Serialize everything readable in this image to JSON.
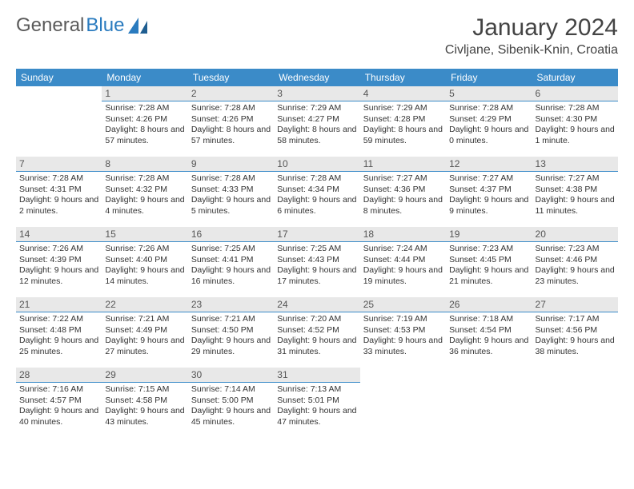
{
  "brand": {
    "part1": "General",
    "part2": "Blue"
  },
  "title": "January 2024",
  "location": "Civljane, Sibenik-Knin, Croatia",
  "colors": {
    "header_bg": "#3b8bc8",
    "header_text": "#ffffff",
    "daynum_bg": "#e8e8e8",
    "rule": "#3b8bc8",
    "logo_gray": "#5a5a5a",
    "logo_blue": "#2a7bbf"
  },
  "day_headers": [
    "Sunday",
    "Monday",
    "Tuesday",
    "Wednesday",
    "Thursday",
    "Friday",
    "Saturday"
  ],
  "weeks": [
    [
      null,
      {
        "n": "1",
        "sr": "7:28 AM",
        "ss": "4:26 PM",
        "dl": "8 hours and 57 minutes."
      },
      {
        "n": "2",
        "sr": "7:28 AM",
        "ss": "4:26 PM",
        "dl": "8 hours and 57 minutes."
      },
      {
        "n": "3",
        "sr": "7:29 AM",
        "ss": "4:27 PM",
        "dl": "8 hours and 58 minutes."
      },
      {
        "n": "4",
        "sr": "7:29 AM",
        "ss": "4:28 PM",
        "dl": "8 hours and 59 minutes."
      },
      {
        "n": "5",
        "sr": "7:28 AM",
        "ss": "4:29 PM",
        "dl": "9 hours and 0 minutes."
      },
      {
        "n": "6",
        "sr": "7:28 AM",
        "ss": "4:30 PM",
        "dl": "9 hours and 1 minute."
      }
    ],
    [
      {
        "n": "7",
        "sr": "7:28 AM",
        "ss": "4:31 PM",
        "dl": "9 hours and 2 minutes."
      },
      {
        "n": "8",
        "sr": "7:28 AM",
        "ss": "4:32 PM",
        "dl": "9 hours and 4 minutes."
      },
      {
        "n": "9",
        "sr": "7:28 AM",
        "ss": "4:33 PM",
        "dl": "9 hours and 5 minutes."
      },
      {
        "n": "10",
        "sr": "7:28 AM",
        "ss": "4:34 PM",
        "dl": "9 hours and 6 minutes."
      },
      {
        "n": "11",
        "sr": "7:27 AM",
        "ss": "4:36 PM",
        "dl": "9 hours and 8 minutes."
      },
      {
        "n": "12",
        "sr": "7:27 AM",
        "ss": "4:37 PM",
        "dl": "9 hours and 9 minutes."
      },
      {
        "n": "13",
        "sr": "7:27 AM",
        "ss": "4:38 PM",
        "dl": "9 hours and 11 minutes."
      }
    ],
    [
      {
        "n": "14",
        "sr": "7:26 AM",
        "ss": "4:39 PM",
        "dl": "9 hours and 12 minutes."
      },
      {
        "n": "15",
        "sr": "7:26 AM",
        "ss": "4:40 PM",
        "dl": "9 hours and 14 minutes."
      },
      {
        "n": "16",
        "sr": "7:25 AM",
        "ss": "4:41 PM",
        "dl": "9 hours and 16 minutes."
      },
      {
        "n": "17",
        "sr": "7:25 AM",
        "ss": "4:43 PM",
        "dl": "9 hours and 17 minutes."
      },
      {
        "n": "18",
        "sr": "7:24 AM",
        "ss": "4:44 PM",
        "dl": "9 hours and 19 minutes."
      },
      {
        "n": "19",
        "sr": "7:23 AM",
        "ss": "4:45 PM",
        "dl": "9 hours and 21 minutes."
      },
      {
        "n": "20",
        "sr": "7:23 AM",
        "ss": "4:46 PM",
        "dl": "9 hours and 23 minutes."
      }
    ],
    [
      {
        "n": "21",
        "sr": "7:22 AM",
        "ss": "4:48 PM",
        "dl": "9 hours and 25 minutes."
      },
      {
        "n": "22",
        "sr": "7:21 AM",
        "ss": "4:49 PM",
        "dl": "9 hours and 27 minutes."
      },
      {
        "n": "23",
        "sr": "7:21 AM",
        "ss": "4:50 PM",
        "dl": "9 hours and 29 minutes."
      },
      {
        "n": "24",
        "sr": "7:20 AM",
        "ss": "4:52 PM",
        "dl": "9 hours and 31 minutes."
      },
      {
        "n": "25",
        "sr": "7:19 AM",
        "ss": "4:53 PM",
        "dl": "9 hours and 33 minutes."
      },
      {
        "n": "26",
        "sr": "7:18 AM",
        "ss": "4:54 PM",
        "dl": "9 hours and 36 minutes."
      },
      {
        "n": "27",
        "sr": "7:17 AM",
        "ss": "4:56 PM",
        "dl": "9 hours and 38 minutes."
      }
    ],
    [
      {
        "n": "28",
        "sr": "7:16 AM",
        "ss": "4:57 PM",
        "dl": "9 hours and 40 minutes."
      },
      {
        "n": "29",
        "sr": "7:15 AM",
        "ss": "4:58 PM",
        "dl": "9 hours and 43 minutes."
      },
      {
        "n": "30",
        "sr": "7:14 AM",
        "ss": "5:00 PM",
        "dl": "9 hours and 45 minutes."
      },
      {
        "n": "31",
        "sr": "7:13 AM",
        "ss": "5:01 PM",
        "dl": "9 hours and 47 minutes."
      },
      null,
      null,
      null
    ]
  ],
  "labels": {
    "sunrise": "Sunrise:",
    "sunset": "Sunset:",
    "daylight": "Daylight:"
  }
}
